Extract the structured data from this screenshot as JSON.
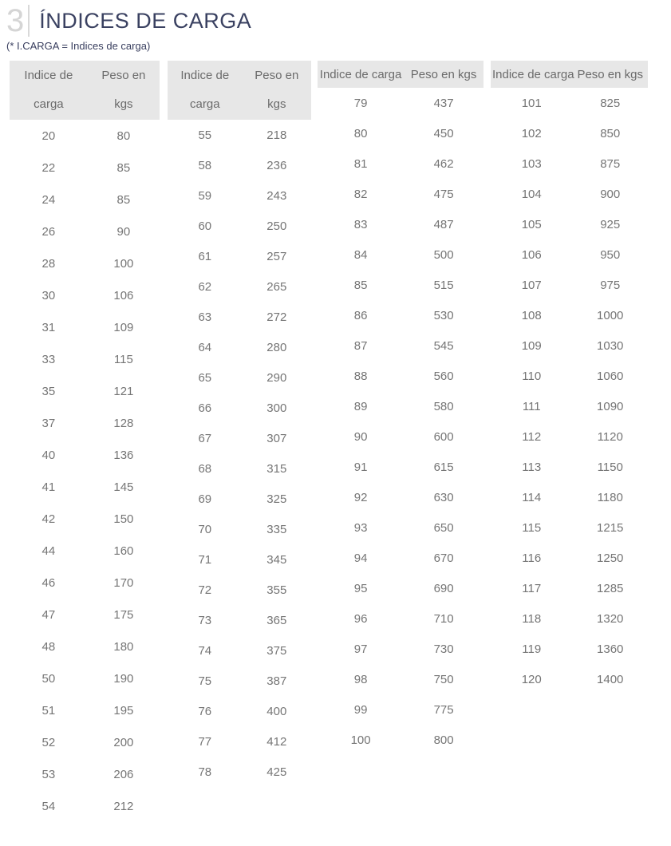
{
  "header": {
    "section_number": "3",
    "title": "ÍNDICES DE CARGA",
    "subtitle": "(* I.CARGA = Indices de carga)"
  },
  "colors": {
    "title_navy": "#3a4161",
    "section_number_gray": "#d5d5d5",
    "table_header_bg": "#e7e7e7",
    "table_header_text": "#6b6b6b",
    "cell_text": "#757575"
  },
  "tables": [
    {
      "headers": [
        "Indice de carga",
        "Peso en kgs"
      ],
      "rows": [
        [
          20,
          80
        ],
        [
          22,
          85
        ],
        [
          24,
          85
        ],
        [
          26,
          90
        ],
        [
          28,
          100
        ],
        [
          30,
          106
        ],
        [
          31,
          109
        ],
        [
          33,
          115
        ],
        [
          35,
          121
        ],
        [
          37,
          128
        ],
        [
          40,
          136
        ],
        [
          41,
          145
        ],
        [
          42,
          150
        ],
        [
          44,
          160
        ],
        [
          46,
          170
        ],
        [
          47,
          175
        ],
        [
          48,
          180
        ],
        [
          50,
          190
        ],
        [
          51,
          195
        ],
        [
          52,
          200
        ],
        [
          53,
          206
        ],
        [
          54,
          212
        ]
      ]
    },
    {
      "headers": [
        "Indice de carga",
        "Peso en kgs"
      ],
      "rows": [
        [
          55,
          218
        ],
        [
          58,
          236
        ],
        [
          59,
          243
        ],
        [
          60,
          250
        ],
        [
          61,
          257
        ],
        [
          62,
          265
        ],
        [
          63,
          272
        ],
        [
          64,
          280
        ],
        [
          65,
          290
        ],
        [
          66,
          300
        ],
        [
          67,
          307
        ],
        [
          68,
          315
        ],
        [
          69,
          325
        ],
        [
          70,
          335
        ],
        [
          71,
          345
        ],
        [
          72,
          355
        ],
        [
          73,
          365
        ],
        [
          74,
          375
        ],
        [
          75,
          387
        ],
        [
          76,
          400
        ],
        [
          77,
          412
        ],
        [
          78,
          425
        ]
      ]
    },
    {
      "headers": [
        "Indice de carga",
        "Peso en kgs"
      ],
      "rows": [
        [
          79,
          437
        ],
        [
          80,
          450
        ],
        [
          81,
          462
        ],
        [
          82,
          475
        ],
        [
          83,
          487
        ],
        [
          84,
          500
        ],
        [
          85,
          515
        ],
        [
          86,
          530
        ],
        [
          87,
          545
        ],
        [
          88,
          560
        ],
        [
          89,
          580
        ],
        [
          90,
          600
        ],
        [
          91,
          615
        ],
        [
          92,
          630
        ],
        [
          93,
          650
        ],
        [
          94,
          670
        ],
        [
          95,
          690
        ],
        [
          96,
          710
        ],
        [
          97,
          730
        ],
        [
          98,
          750
        ],
        [
          99,
          775
        ],
        [
          100,
          800
        ]
      ]
    },
    {
      "headers": [
        "Indice de carga",
        "Peso en kgs"
      ],
      "rows": [
        [
          101,
          825
        ],
        [
          102,
          850
        ],
        [
          103,
          875
        ],
        [
          104,
          900
        ],
        [
          105,
          925
        ],
        [
          106,
          950
        ],
        [
          107,
          975
        ],
        [
          108,
          1000
        ],
        [
          109,
          1030
        ],
        [
          110,
          1060
        ],
        [
          111,
          1090
        ],
        [
          112,
          1120
        ],
        [
          113,
          1150
        ],
        [
          114,
          1180
        ],
        [
          115,
          1215
        ],
        [
          116,
          1250
        ],
        [
          117,
          1285
        ],
        [
          118,
          1320
        ],
        [
          119,
          1360
        ],
        [
          120,
          1400
        ]
      ]
    }
  ]
}
